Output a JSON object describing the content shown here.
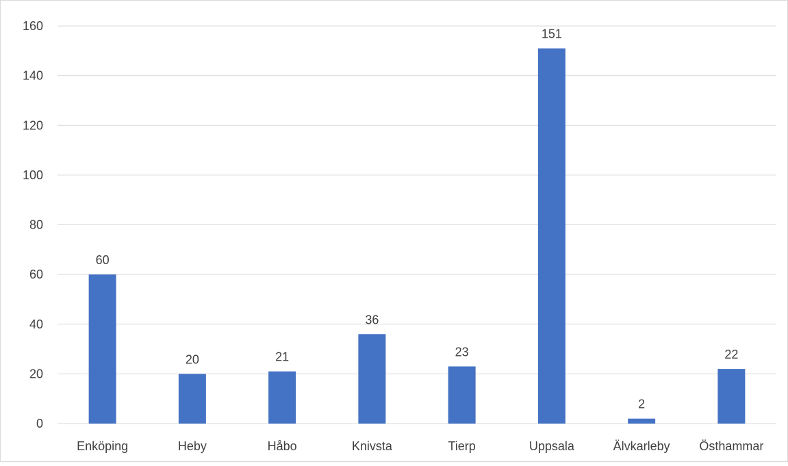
{
  "chart_data": {
    "type": "bar",
    "categories": [
      "Enköping",
      "Heby",
      "Håbo",
      "Knivsta",
      "Tierp",
      "Uppsala",
      "Älvkarleby",
      "Östhammar"
    ],
    "values": [
      60,
      20,
      21,
      36,
      23,
      151,
      2,
      22
    ],
    "data_labels": [
      "60",
      "20",
      "21",
      "36",
      "23",
      "151",
      "2",
      "22"
    ],
    "y_ticks": [
      "0",
      "20",
      "40",
      "60",
      "80",
      "100",
      "120",
      "140",
      "160"
    ],
    "ylim": [
      0,
      160
    ],
    "grid": true,
    "legend": false,
    "title": "",
    "xlabel": "",
    "ylabel": "",
    "bar_color": "#4472C4",
    "grid_color": "#d9d9d9"
  }
}
